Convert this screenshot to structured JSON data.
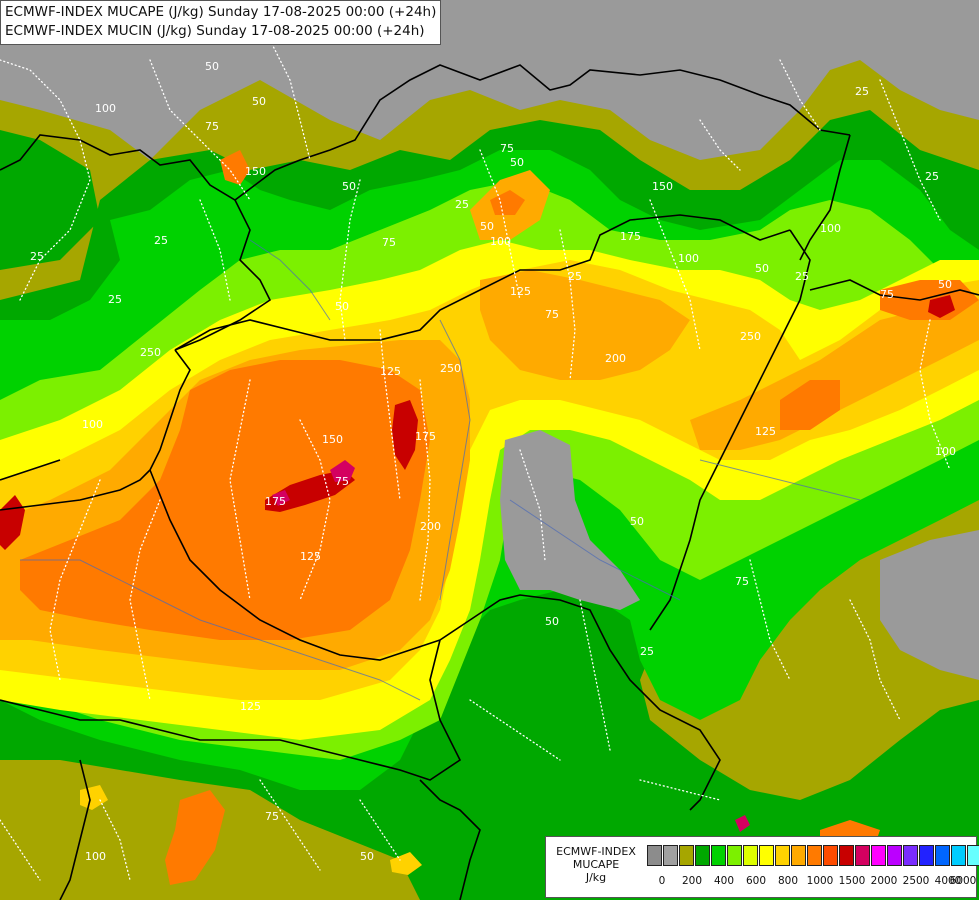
{
  "header": {
    "line1": "ECMWF-INDEX MUCAPE (J/kg) Sunday 17-08-2025 00:00 (+24h)",
    "line2": "ECMWF-INDEX MUCIN (J/kg) Sunday 17-08-2025 00:00 (+24h)"
  },
  "legend": {
    "line1": "ECMWF-INDEX",
    "line2": "MUCAPE",
    "line3": "J/kg",
    "swatches": [
      "#8c8c8c",
      "#a0a0a0",
      "#a6a600",
      "#00a800",
      "#00d200",
      "#7cf000",
      "#ddff00",
      "#ffff00",
      "#ffd200",
      "#ffaa00",
      "#ff7a00",
      "#ff4c00",
      "#c80000",
      "#d40060",
      "#ff00ff",
      "#bb00ff",
      "#7a2dff",
      "#2222ff",
      "#0066ff",
      "#00ccff",
      "#66ffff",
      "#ffffff"
    ],
    "ticks": [
      "0",
      "200",
      "400",
      "600",
      "800",
      "1000",
      "1500",
      "2000",
      "2500",
      "4000",
      "6000"
    ]
  },
  "map": {
    "colors": {
      "gray": "#9a9a9a",
      "olive": "#a6a600",
      "green": "#00a800",
      "lime": "#00d200",
      "yellowgreen": "#7cf000",
      "yellow": "#ffff00",
      "gold": "#ffd200",
      "orange": "#ffaa00",
      "darkorange": "#ff7a00",
      "red": "#c80000",
      "magenta": "#d40060"
    },
    "contour_labels": [
      "50",
      "25",
      "50",
      "75",
      "100",
      "150",
      "125",
      "175",
      "250",
      "200",
      "150",
      "125",
      "175",
      "75",
      "25",
      "50",
      "100",
      "250",
      "75",
      "50",
      "25",
      "50",
      "100",
      "75",
      "125",
      "25",
      "25",
      "50",
      "75",
      "100",
      "175",
      "200",
      "250",
      "150",
      "50",
      "125",
      "100",
      "75",
      "50",
      "25",
      "25",
      "25",
      "100",
      "50",
      "25",
      "75",
      "125",
      "75",
      "100",
      "50",
      "50"
    ]
  }
}
